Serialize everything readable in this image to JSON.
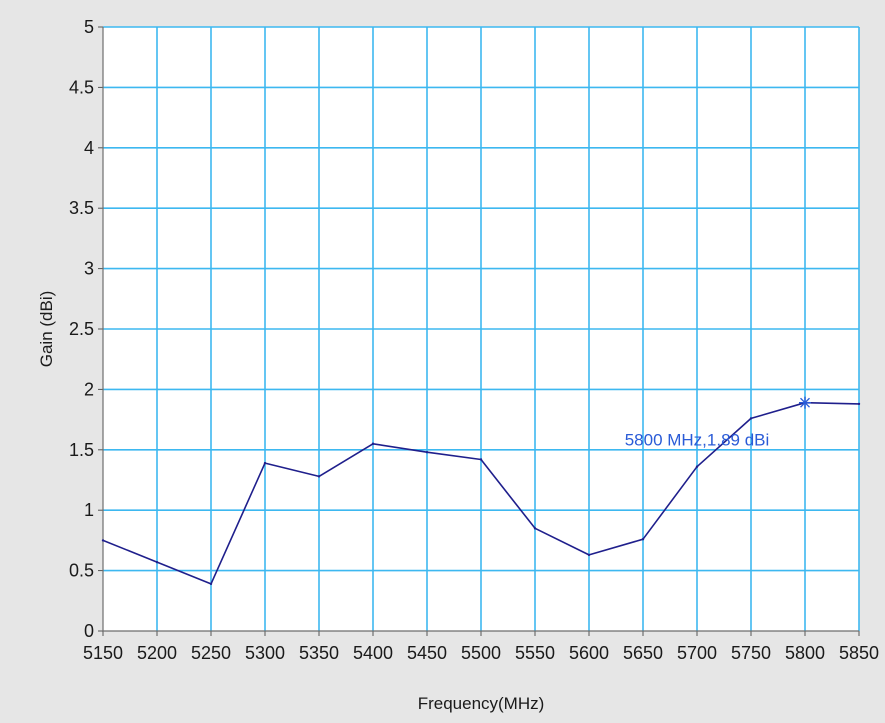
{
  "chart_data": {
    "type": "line",
    "title": "",
    "xlabel": "Frequency(MHz)",
    "ylabel": "Gain (dBi)",
    "xlim": [
      5150,
      5850
    ],
    "ylim": [
      0,
      5
    ],
    "grid": true,
    "x_ticks": [
      5150,
      5200,
      5250,
      5300,
      5350,
      5400,
      5450,
      5500,
      5550,
      5600,
      5650,
      5700,
      5750,
      5800,
      5850
    ],
    "y_ticks": [
      0,
      0.5,
      1,
      1.5,
      2,
      2.5,
      3,
      3.5,
      4,
      4.5,
      5
    ],
    "y_tick_labels": [
      "0",
      "0.5",
      "1",
      "1.5",
      "2",
      "2.5",
      "3",
      "3.5",
      "4",
      "4.5",
      "5"
    ],
    "series": [
      {
        "x": [
          5150,
          5200,
          5250,
          5300,
          5350,
          5400,
          5450,
          5500,
          5550,
          5600,
          5650,
          5700,
          5750,
          5800,
          5850
        ],
        "values": [
          0.75,
          0.57,
          0.39,
          1.39,
          1.28,
          1.55,
          1.48,
          1.42,
          0.85,
          0.63,
          0.76,
          1.36,
          1.76,
          1.89,
          1.88
        ]
      }
    ],
    "annotations": [
      {
        "text": "5800 MHz,1.89 dBi",
        "x": 5800,
        "y": 1.89,
        "marker": "asterisk"
      }
    ],
    "colors": {
      "background": "#e6e6e6",
      "plot_background": "#ffffff",
      "grid": "#3db8f0",
      "line": "#1f1f8c",
      "annotation": "#2a5bd7"
    }
  }
}
